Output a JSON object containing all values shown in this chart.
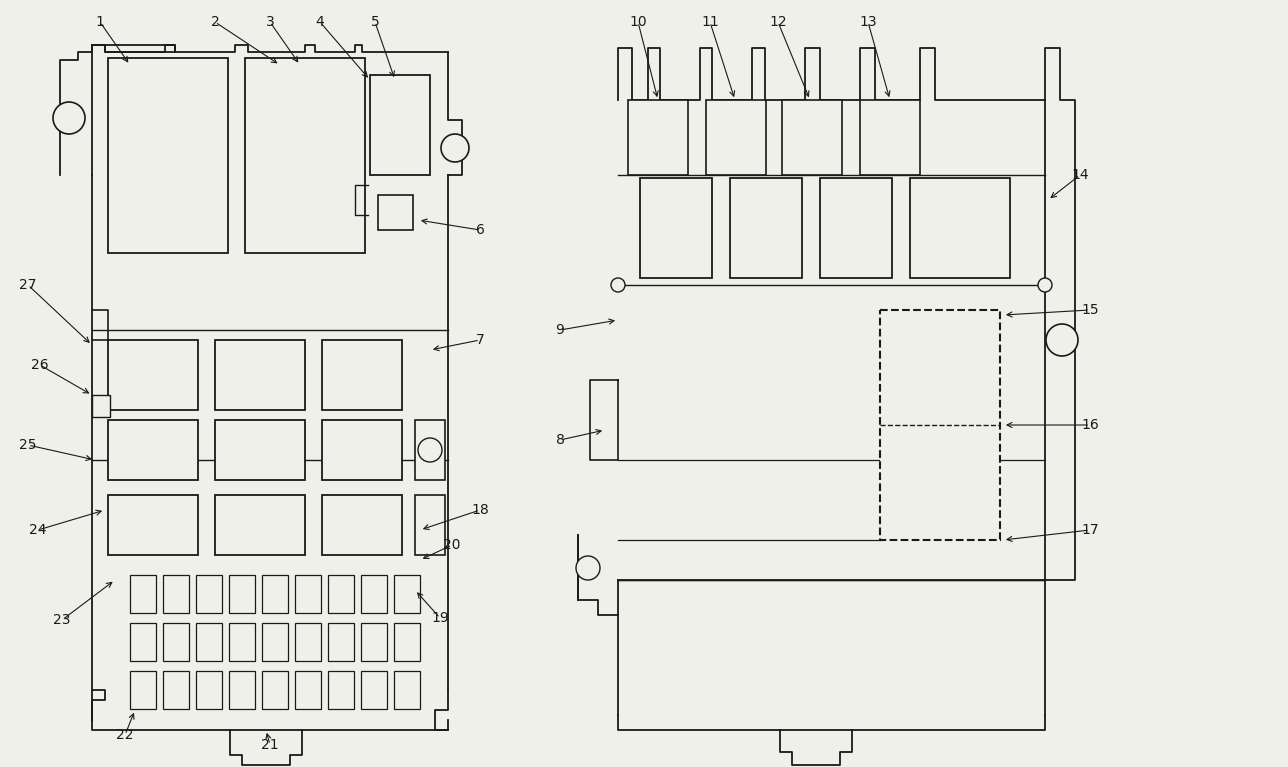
{
  "bg_color": "#f0f0ea",
  "line_color": "#1a1a1a",
  "fig_width": 12.88,
  "fig_height": 7.67,
  "dpi": 100
}
